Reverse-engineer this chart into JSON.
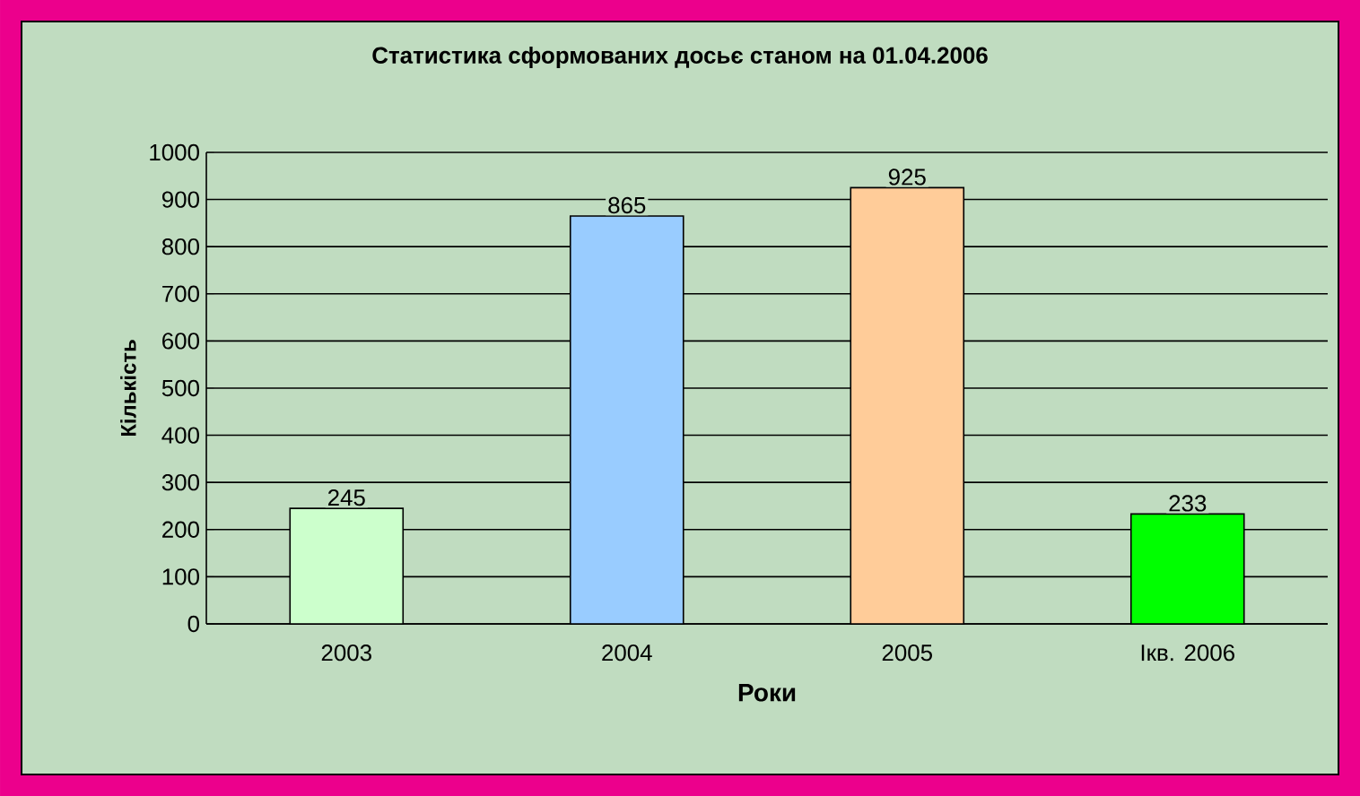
{
  "chart_data": {
    "type": "bar",
    "title": "Статистика сформованих досьє станом на 01.04.2006",
    "xlabel": "Роки",
    "ylabel": "Кількість",
    "categories": [
      "2003",
      "2004",
      "2005",
      "Ікв. 2006"
    ],
    "values": [
      245,
      865,
      925,
      233
    ],
    "colors": [
      "#ccffcc",
      "#99ccff",
      "#ffcc99",
      "#00ff00"
    ],
    "ylim": [
      0,
      1000
    ],
    "yticks": [
      0,
      100,
      200,
      300,
      400,
      500,
      600,
      700,
      800,
      900,
      1000
    ],
    "grid": "y",
    "data_labels": true
  }
}
